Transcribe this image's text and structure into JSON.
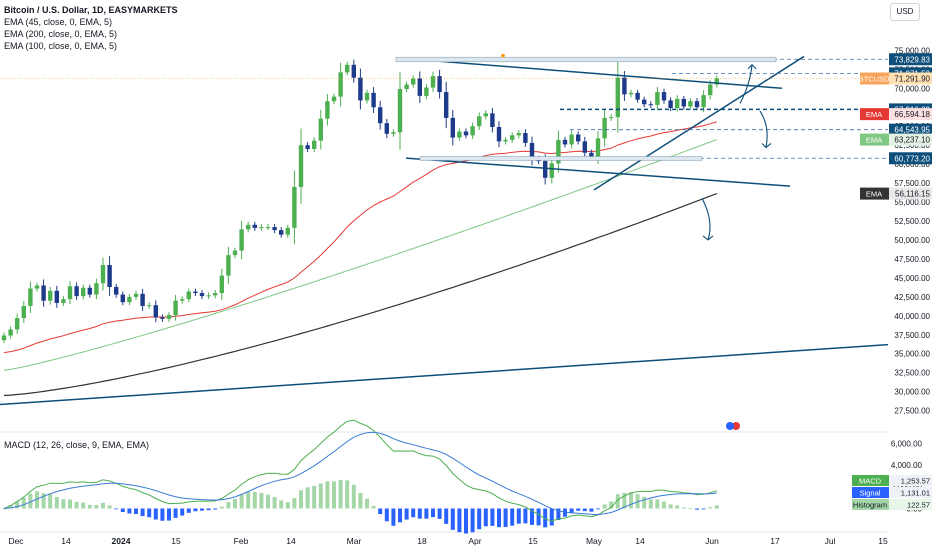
{
  "legend": {
    "title": "Bitcoin / U.S. Dollar, 1D, EASYMARKETS",
    "ema1": "EMA (45, close, 0, EMA, 5)",
    "ema2": "EMA (200, close, 0, EMA, 5)",
    "ema3": "EMA (100, close, 0, EMA, 5)"
  },
  "macd_legend": "MACD (12, 26, close, 9, EMA, EMA)",
  "currency_button": "USD",
  "colors": {
    "up": "#4caf50",
    "down": "#1e3a8a",
    "ema45": "#e53935",
    "ema100": "#81c784",
    "ema200": "#333333",
    "trendline": "#0d4f7a",
    "macd": "#3a7bd5",
    "signal": "#4caf50",
    "hist_up": "#a5d6a7",
    "hist_down": "#2962ff",
    "price_tag": "#ff9800"
  },
  "chart_data": [
    {
      "type": "candlestick",
      "title": "Bitcoin / U.S. Dollar, 1D, EASYMARKETS",
      "x_ticks": [
        "Dec",
        "14",
        "2024",
        "15",
        "Feb",
        "14",
        "Mar",
        "18",
        "Apr",
        "15",
        "May",
        "14",
        "Jun",
        "17",
        "Jul",
        "15"
      ],
      "y_ticks": [
        27500,
        30000,
        32500,
        35000,
        37500,
        40000,
        42500,
        45000,
        47500,
        50000,
        52500,
        55000,
        57500,
        60000,
        62500,
        65000,
        67500,
        70000,
        72500,
        75000
      ],
      "y_tick_labels": [
        "27,500.00",
        "30,000.00",
        "32,500.00",
        "35,000.00",
        "37,500.00",
        "40,000.00",
        "42,500.00",
        "45,000.00",
        "47,500.00",
        "50,000.00",
        "52,500.00",
        "55,000.00",
        "57,500.00",
        "60,000.00",
        "62,500.00",
        "65,000.00",
        "67,500.00",
        "70,000.00",
        "72,500.00",
        "75,000.00"
      ],
      "ylim": [
        26000,
        76500
      ],
      "close_series": [
        37400,
        38200,
        39700,
        41300,
        43600,
        44000,
        42000,
        43300,
        41700,
        42200,
        43900,
        42600,
        43700,
        42800,
        44300,
        46700,
        43800,
        42800,
        41800,
        42500,
        42900,
        41300,
        41400,
        39800,
        39600,
        40100,
        42000,
        42200,
        43200,
        43000,
        42600,
        42700,
        43000,
        45300,
        48000,
        48600,
        51400,
        52000,
        51600,
        51700,
        51700,
        51300,
        50700,
        51600,
        57000,
        62500,
        62000,
        63100,
        66000,
        68300,
        68900,
        72100,
        73100,
        71400,
        68400,
        69400,
        67500,
        65400,
        64000,
        64200,
        69900,
        70500,
        71300,
        69000,
        70100,
        71600,
        69500,
        66100,
        63500,
        64300,
        63800,
        65000,
        66300,
        66700,
        64900,
        63000,
        63200,
        63800,
        64100,
        62800,
        60700,
        60400,
        58200,
        60100,
        63200,
        62600,
        63900,
        63000,
        61500,
        61000,
        63400,
        66100,
        66200,
        71400,
        69200,
        69400,
        68500,
        67900,
        67800,
        69500,
        68400,
        67400,
        68600,
        67600,
        68300,
        67500,
        69100,
        70500,
        71300
      ],
      "annotations": {
        "current_price": 71291.9,
        "current_label": "BTCUSD",
        "levels": [
          73829.83,
          71971.58,
          67216.32,
          64543.95,
          60773.2
        ],
        "level_labels": [
          "73,829.83",
          "71,971.58",
          "67,216.32",
          "64,543.95",
          "60,773.20"
        ],
        "current_price_label": "71,291.90",
        "ema_values": {
          "ema45": 66594.18,
          "ema100": 63237.1,
          "ema200": 56116.15
        },
        "ema_labels": {
          "ema45": "66,594.18",
          "ema100": "63,237.10",
          "ema200": "56,116.15"
        },
        "ema_tag": "EMA"
      }
    },
    {
      "type": "line",
      "title": "MACD (12, 26, close, 9, EMA, EMA)",
      "y_ticks": [
        0,
        2000,
        4000,
        6000
      ],
      "y_tick_labels": [
        "0.00",
        "2,000.00",
        "4,000.00",
        "6,000.00"
      ],
      "ylim": [
        -1800,
        6500
      ],
      "series": [
        {
          "name": "MACD",
          "value": 1253.57,
          "label": "1,253.57"
        },
        {
          "name": "Signal",
          "value": 1131.01,
          "label": "1,131.01"
        },
        {
          "name": "Histogram",
          "value": 122.57,
          "label": "122.57"
        }
      ]
    }
  ]
}
